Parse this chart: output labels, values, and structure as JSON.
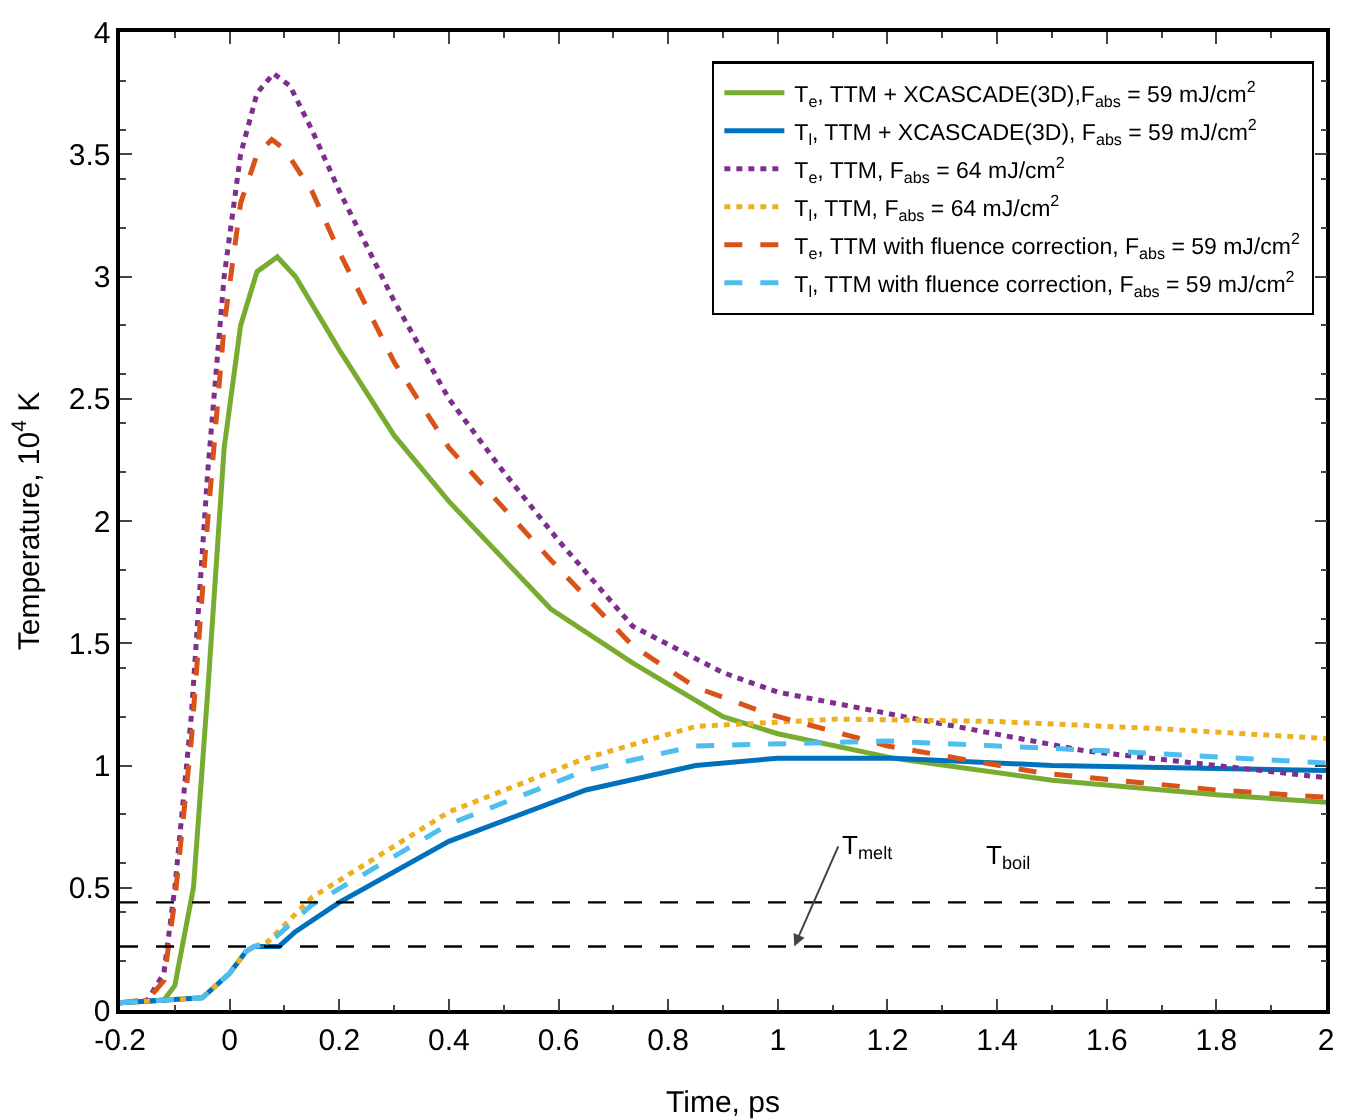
{
  "chart_data": {
    "type": "line",
    "xlabel": "Time, ps",
    "ylabel": "Temperature, 10$^{4}$ K",
    "xlim": [
      -0.2,
      2
    ],
    "xticks": [
      -0.2,
      0,
      0.2,
      0.4,
      0.6,
      0.8,
      1,
      1.2,
      1.4,
      1.6,
      1.8,
      2
    ],
    "ylim": [
      0,
      4
    ],
    "yticks": [
      0,
      0.5,
      1,
      1.5,
      2,
      2.5,
      3,
      3.5,
      4
    ],
    "grid": false,
    "legend": "top right",
    "marker": "none",
    "series": [
      {
        "name": "T$_{e}$, TTM + XCASCADE(3D),F$_{abs}$ = 59 mJ/cm$^{2}$",
        "color": "#77ac30",
        "line_style": "solid",
        "x": [
          -0.2,
          -0.12,
          -0.1,
          -0.066,
          -0.04,
          -0.01,
          0.02,
          0.05,
          0.087,
          0.12,
          0.2,
          0.3,
          0.4,
          0.586,
          0.735,
          0.9,
          1,
          1.21,
          1.5,
          1.8,
          2
        ],
        "values": [
          0.03,
          0.04,
          0.1,
          0.5,
          1.3,
          2.3,
          2.8,
          3.02,
          3.08,
          3,
          2.7,
          2.35,
          2.08,
          1.64,
          1.42,
          1.2,
          1.13,
          1.03,
          0.94,
          0.88,
          0.85
        ]
      },
      {
        "name": "T$_{l}$, TTM + XCASCADE(3D), F$_{abs}$ = 59 mJ/cm$^{2}$",
        "color": "#0072bd",
        "line_style": "solid",
        "x": [
          -0.2,
          -0.05,
          0,
          0.03,
          0.045,
          0.09,
          0.12,
          0.2,
          0.4,
          0.65,
          0.85,
          1,
          1.21,
          1.5,
          2
        ],
        "values": [
          0.03,
          0.05,
          0.15,
          0.24,
          0.26,
          0.26,
          0.32,
          0.44,
          0.69,
          0.9,
          1,
          1.03,
          1.03,
          1,
          0.98
        ]
      },
      {
        "name": "T$_{e}$, TTM, F$_{abs}$ = 64 mJ/cm$^{2}$",
        "color": "#7e2f8e",
        "line_style": "dotted",
        "x": [
          -0.2,
          -0.15,
          -0.12,
          -0.1,
          -0.07,
          -0.04,
          -0.01,
          0.02,
          0.05,
          0.08,
          0.11,
          0.15,
          0.2,
          0.3,
          0.4,
          0.5,
          0.6,
          0.735,
          0.9,
          1,
          1.23,
          1.56,
          1.8,
          2
        ],
        "values": [
          0.03,
          0.04,
          0.15,
          0.5,
          1.2,
          2.2,
          3,
          3.5,
          3.75,
          3.83,
          3.78,
          3.6,
          3.35,
          2.9,
          2.5,
          2.2,
          1.92,
          1.57,
          1.38,
          1.3,
          1.2,
          1.06,
          1,
          0.95
        ]
      },
      {
        "name": "T$_{l}$, TTM, F$_{abs}$ = 64 mJ/cm$^{2}$",
        "color": "#edb120",
        "line_style": "dotted",
        "x": [
          -0.2,
          -0.05,
          0,
          0.03,
          0.045,
          0.07,
          0.15,
          0.4,
          0.65,
          0.85,
          1.11,
          1.4,
          1.7,
          2
        ],
        "values": [
          0.03,
          0.05,
          0.15,
          0.24,
          0.26,
          0.28,
          0.46,
          0.81,
          1.03,
          1.16,
          1.19,
          1.18,
          1.15,
          1.11
        ]
      },
      {
        "name": "T$_{e}$, TTM with fluence correction, F$_{abs}$ = 59 mJ/cm$^{2}$",
        "color": "#d95319",
        "line_style": "dashed",
        "x": [
          -0.2,
          -0.15,
          -0.12,
          -0.1,
          -0.07,
          -0.04,
          -0.01,
          0.02,
          0.05,
          0.077,
          0.1,
          0.15,
          0.2,
          0.3,
          0.4,
          0.586,
          0.735,
          0.85,
          0.984,
          1.2,
          1.48,
          1.8,
          2
        ],
        "values": [
          0.03,
          0.04,
          0.12,
          0.45,
          1.1,
          2,
          2.8,
          3.3,
          3.5,
          3.56,
          3.52,
          3.35,
          3.1,
          2.65,
          2.3,
          1.84,
          1.49,
          1.32,
          1.21,
          1.08,
          0.97,
          0.9,
          0.87
        ]
      },
      {
        "name": "T$_{l}$, TTM with fluence correction, F$_{abs}$ = 59 mJ/cm$^{2}$",
        "color": "#4dbeee",
        "line_style": "dashed",
        "x": [
          -0.2,
          -0.05,
          0,
          0.03,
          0.045,
          0.07,
          0.15,
          0.4,
          0.65,
          0.85,
          1.2,
          1.6,
          2
        ],
        "values": [
          0.03,
          0.05,
          0.15,
          0.24,
          0.26,
          0.27,
          0.43,
          0.76,
          0.98,
          1.08,
          1.1,
          1.06,
          1.01
        ]
      }
    ],
    "ref_lines": [
      {
        "axis": "y",
        "value": 0.44,
        "color": "#000000",
        "line_style": "dashed"
      },
      {
        "axis": "y",
        "value": 0.26,
        "color": "#000000",
        "line_style": "dashed"
      }
    ],
    "annotations": [
      {
        "text": "T$_{melt}$",
        "x": 1.03,
        "y": 0.26
      },
      {
        "text": "T$_{boil}$",
        "x": 1.42,
        "y": 0.44
      }
    ]
  }
}
